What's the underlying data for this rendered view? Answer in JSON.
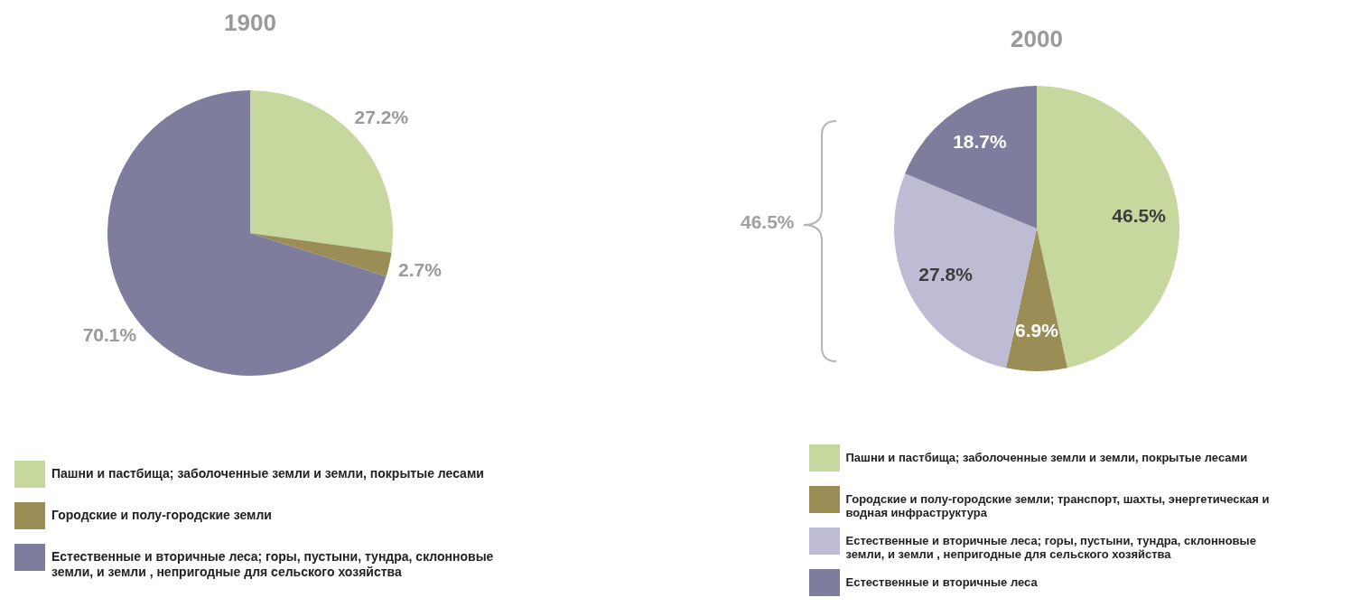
{
  "chart_data": [
    {
      "type": "pie",
      "title": "1900",
      "categories": [
        "Пашни и пастбища; заболоченные земли и земли, покрытые лесами",
        "Городские и полу-городские земли",
        "Естественные и вторичные леса; горы, пустыни, тундра, склонновые земли, и земли , непригодные для сельского хозяйства"
      ],
      "values": [
        27.2,
        2.7,
        70.1
      ],
      "colors": [
        "#c6d89e",
        "#9a8e56",
        "#7f7d9d"
      ],
      "value_labels": [
        "27.2%",
        "2.7%",
        "70.1%"
      ],
      "legend": "bottom"
    },
    {
      "type": "pie",
      "title": "2000",
      "categories": [
        "Пашни и пастбища; заболоченные земли и земли, покрытые лесами",
        "Городские и полу-городские земли; транспорт, шахты, энергетическая и водная инфраструктура",
        "Естественные и вторичные леса; горы, пустыни, тундра, склонновые земли, и земли , непригодные для сельского хозяйства",
        "Естественные и вторичные леса"
      ],
      "values": [
        46.5,
        6.9,
        27.8,
        18.7
      ],
      "colors": [
        "#c6d89e",
        "#9a8e56",
        "#bebcd4",
        "#7f7d9d"
      ],
      "value_labels": [
        "46.5%",
        "6.9%",
        "27.8%",
        "18.7%"
      ],
      "legend": "bottom",
      "annotations": [
        "46.5%"
      ]
    }
  ]
}
